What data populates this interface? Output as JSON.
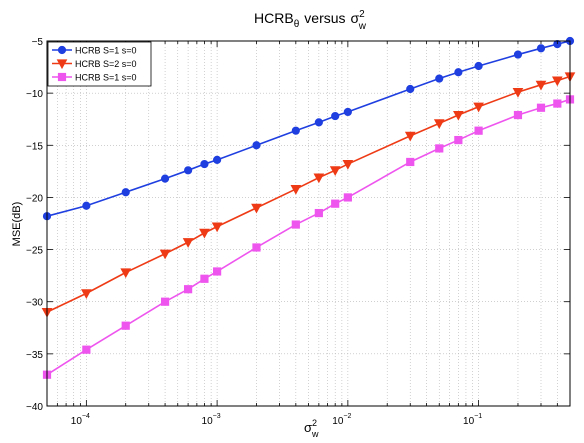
{
  "chart_data": {
    "type": "line",
    "title": "HCRB",
    "title_theta_sub": "θ",
    "title_versus": "versus",
    "title_sigma": "σ",
    "title_sigma_sup": "2",
    "title_sigma_sub": "w",
    "xlabel_symbol": "σ",
    "xlabel_sup": "2",
    "xlabel_sub": "w",
    "ylabel": "MSE(dB)",
    "x_scale": "log",
    "xlim": [
      5e-05,
      0.5
    ],
    "ylim": [
      -40,
      -5
    ],
    "grid": true,
    "legend_position": "top-left",
    "x_tick_values": [
      0.0001,
      0.001,
      0.01,
      0.1
    ],
    "x_tick_labels": [
      {
        "base": "10",
        "exp": "−4"
      },
      {
        "base": "10",
        "exp": "−3"
      },
      {
        "base": "10",
        "exp": "−2"
      },
      {
        "base": "10",
        "exp": "−1"
      }
    ],
    "y_tick_values": [
      -40,
      -35,
      -30,
      -25,
      -20,
      -15,
      -10,
      -5
    ],
    "y_tick_labels": [
      "−40",
      "−35",
      "−30",
      "−25",
      "−20",
      "−15",
      "−10",
      "−5"
    ],
    "x": [
      5e-05,
      0.0001,
      0.0002,
      0.0004,
      0.0006,
      0.0008,
      0.001,
      0.002,
      0.004,
      0.006,
      0.008,
      0.01,
      0.03,
      0.05,
      0.07,
      0.1,
      0.2,
      0.3,
      0.4,
      0.5
    ],
    "series": [
      {
        "name": "HCRB S=1 s=0",
        "color": "#1f3fe0",
        "marker": "circle",
        "values": [
          -21.8,
          -20.8,
          -19.5,
          -18.2,
          -17.4,
          -16.8,
          -16.4,
          -15.0,
          -13.6,
          -12.8,
          -12.2,
          -11.8,
          -9.6,
          -8.6,
          -8.0,
          -7.4,
          -6.3,
          -5.7,
          -5.3,
          -5.0
        ]
      },
      {
        "name": "HCRB S=2 s=0",
        "color": "#ee3b16",
        "marker": "triangle-down",
        "values": [
          -31.0,
          -29.2,
          -27.2,
          -25.4,
          -24.3,
          -23.4,
          -22.8,
          -21.0,
          -19.2,
          -18.1,
          -17.4,
          -16.8,
          -14.1,
          -12.9,
          -12.1,
          -11.3,
          -9.9,
          -9.2,
          -8.8,
          -8.4
        ]
      },
      {
        "name": "HCRB S=1 s=0",
        "color": "#ee55ee",
        "marker": "square",
        "values": [
          -37.0,
          -34.6,
          -32.3,
          -30.0,
          -28.8,
          -27.8,
          -27.1,
          -24.8,
          -22.6,
          -21.5,
          -20.6,
          -20.0,
          -16.6,
          -15.3,
          -14.5,
          -13.6,
          -12.1,
          -11.4,
          -11.0,
          -10.6
        ]
      }
    ]
  }
}
